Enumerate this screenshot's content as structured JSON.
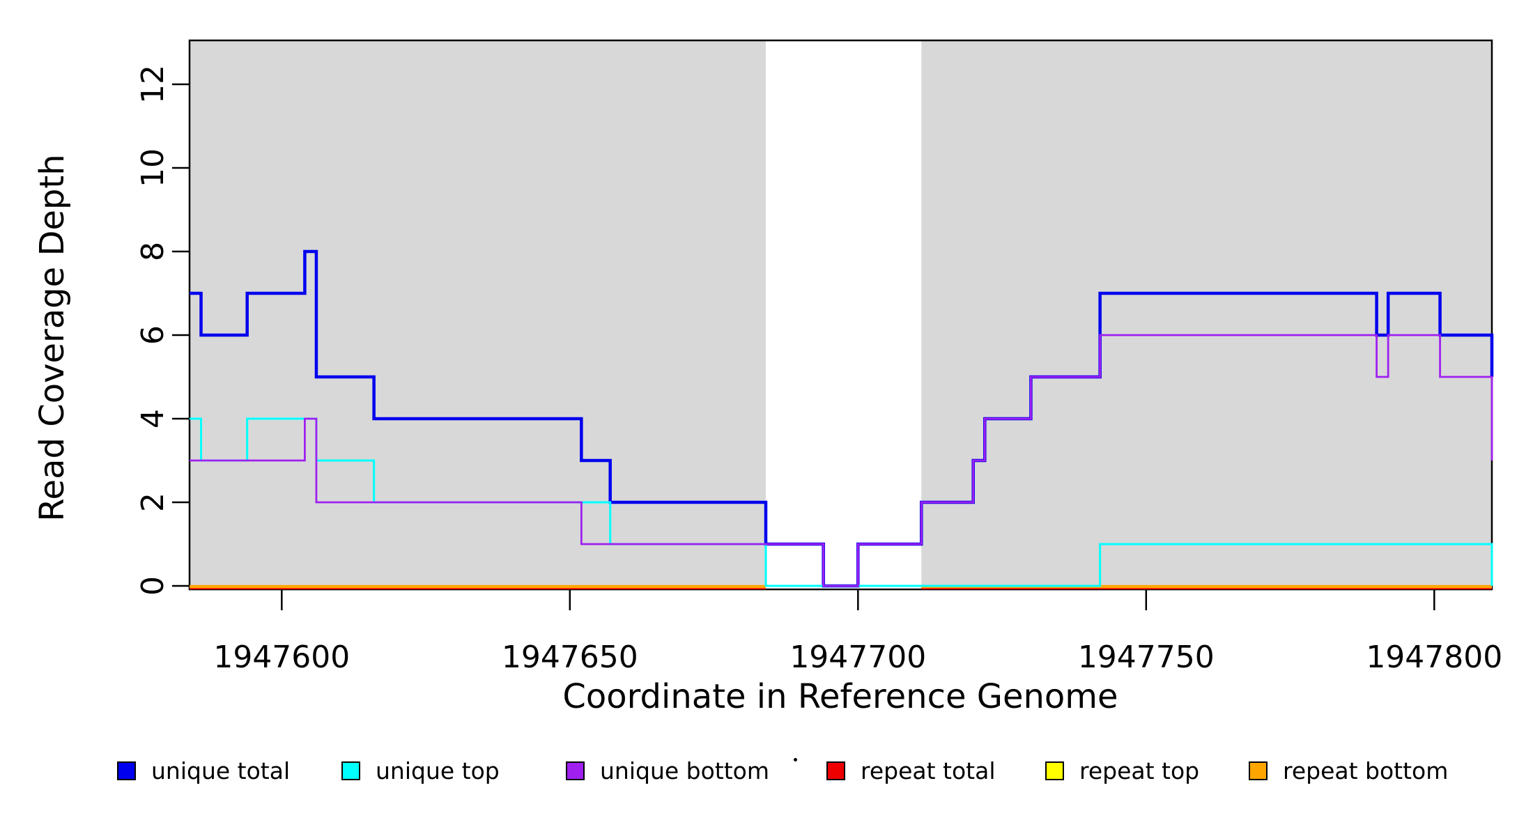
{
  "chart_data": {
    "type": "line",
    "subtype": "step-coverage",
    "xlabel": "Coordinate in Reference Genome",
    "ylabel": "Read Coverage Depth",
    "xlim": [
      1947584,
      1947810
    ],
    "ylim": [
      0,
      13
    ],
    "x_ticks": [
      1947600,
      1947650,
      1947700,
      1947750,
      1947800
    ],
    "y_ticks": [
      0,
      2,
      4,
      6,
      8,
      10,
      12
    ],
    "grid": false,
    "legend_position": "bottom",
    "shaded_region_color": "#D8D8D8",
    "shaded_regions": [
      [
        1947584,
        1947684
      ],
      [
        1947711,
        1947810
      ]
    ],
    "series": [
      {
        "name": "unique total",
        "color": "#0000EE",
        "steps": [
          [
            1947584,
            7
          ],
          [
            1947586,
            6
          ],
          [
            1947594,
            7
          ],
          [
            1947604,
            8
          ],
          [
            1947606,
            5
          ],
          [
            1947616,
            4
          ],
          [
            1947652,
            3
          ],
          [
            1947657,
            2
          ],
          [
            1947684,
            1
          ],
          [
            1947694,
            0
          ],
          [
            1947700,
            1
          ],
          [
            1947711,
            2
          ],
          [
            1947720,
            3
          ],
          [
            1947722,
            4
          ],
          [
            1947730,
            5
          ],
          [
            1947742,
            7
          ],
          [
            1947790,
            6
          ],
          [
            1947792,
            7
          ],
          [
            1947801,
            6
          ]
        ],
        "end_value": 5
      },
      {
        "name": "unique top",
        "color": "#00FFFF",
        "steps": [
          [
            1947584,
            4
          ],
          [
            1947586,
            3
          ],
          [
            1947594,
            4
          ],
          [
            1947606,
            3
          ],
          [
            1947616,
            2
          ],
          [
            1947657,
            1
          ],
          [
            1947684,
            0
          ],
          [
            1947742,
            1
          ]
        ],
        "end_value": 0
      },
      {
        "name": "unique bottom",
        "color": "#A020F0",
        "steps": [
          [
            1947584,
            3
          ],
          [
            1947604,
            4
          ],
          [
            1947606,
            2
          ],
          [
            1947652,
            1
          ],
          [
            1947694,
            0
          ],
          [
            1947700,
            1
          ],
          [
            1947711,
            2
          ],
          [
            1947720,
            3
          ],
          [
            1947722,
            4
          ],
          [
            1947730,
            5
          ],
          [
            1947742,
            6
          ],
          [
            1947790,
            5
          ],
          [
            1947792,
            6
          ],
          [
            1947801,
            5
          ]
        ],
        "end_value": 3
      },
      {
        "name": "repeat total",
        "color": "#EE0000",
        "value": 0,
        "segments": [
          [
            1947584,
            1947684
          ],
          [
            1947711,
            1947810
          ]
        ]
      },
      {
        "name": "repeat top",
        "color": "#FFFF00",
        "value": 0,
        "segments": [
          [
            1947584,
            1947684
          ],
          [
            1947711,
            1947810
          ]
        ]
      },
      {
        "name": "repeat bottom",
        "color": "#FFA500",
        "value": 0,
        "segments": [
          [
            1947584,
            1947684
          ],
          [
            1947711,
            1947810
          ]
        ]
      }
    ],
    "legend": [
      {
        "label": "unique total",
        "color": "#0000EE"
      },
      {
        "label": "unique top",
        "color": "#00FFFF"
      },
      {
        "label": "unique bottom",
        "color": "#A020F0"
      },
      {
        "label": "repeat total",
        "color": "#EE0000"
      },
      {
        "label": "repeat top",
        "color": "#FFFF00"
      },
      {
        "label": "repeat bottom",
        "color": "#FFA500"
      }
    ]
  }
}
